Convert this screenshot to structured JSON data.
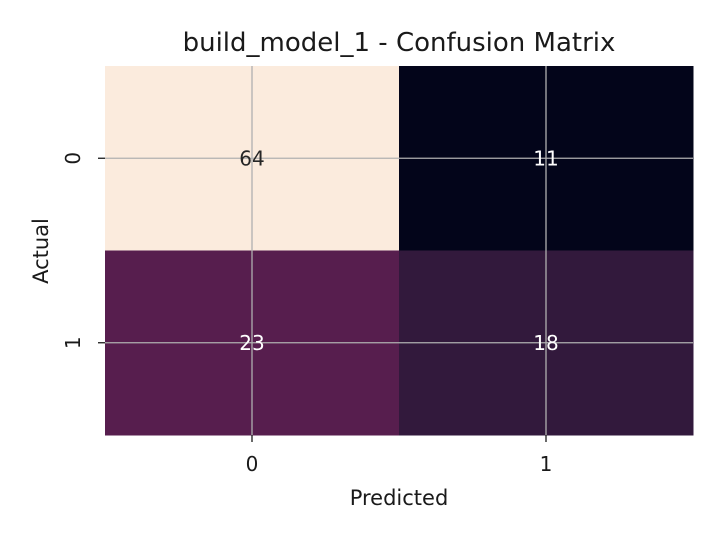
{
  "chart_data": {
    "type": "heatmap",
    "title": "build_model_1 - Confusion Matrix",
    "xlabel": "Predicted",
    "ylabel": "Actual",
    "x_categories": [
      "0",
      "1"
    ],
    "y_categories": [
      "0",
      "1"
    ],
    "values": [
      [
        64,
        11
      ],
      [
        23,
        18
      ]
    ],
    "cell_colors": [
      [
        "#fbebdd",
        "#03051a"
      ],
      [
        "#571e4e",
        "#32193c"
      ]
    ],
    "annotation_colors": [
      [
        "#262626",
        "#ffffff"
      ],
      [
        "#ffffff",
        "#ffffff"
      ]
    ],
    "colorbar": false,
    "grid": true,
    "grid_color": "#b0b0b0"
  }
}
